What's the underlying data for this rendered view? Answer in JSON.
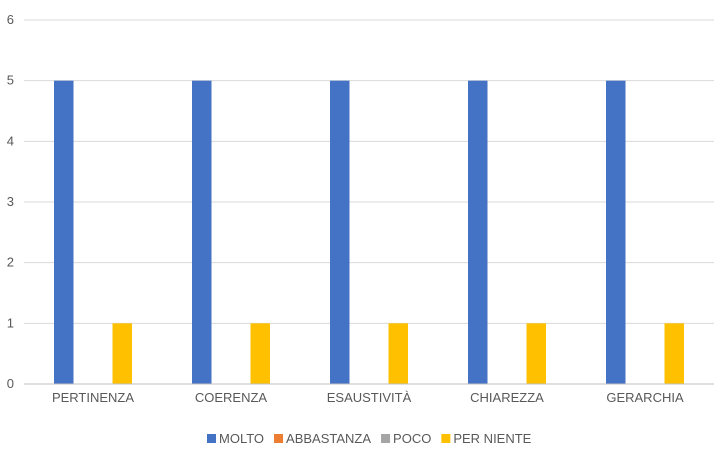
{
  "chart_data": {
    "type": "bar",
    "categories": [
      "PERTINENZA",
      "COERENZA",
      "ESAUSTIVITÀ",
      "CHIAREZZA",
      "GERARCHIA"
    ],
    "series": [
      {
        "name": "MOLTO",
        "color": "#4472C4",
        "values": [
          5,
          5,
          5,
          5,
          5
        ]
      },
      {
        "name": "ABBASTANZA",
        "color": "#ED7D31",
        "values": [
          0,
          0,
          0,
          0,
          0
        ]
      },
      {
        "name": "POCO",
        "color": "#A5A5A5",
        "values": [
          0,
          0,
          0,
          0,
          0
        ]
      },
      {
        "name": "PER NIENTE",
        "color": "#FFC000",
        "values": [
          1,
          1,
          1,
          1,
          1
        ]
      }
    ],
    "ylim": [
      0,
      6
    ],
    "yticks": [
      "0",
      "1",
      "2",
      "3",
      "4",
      "5",
      "6"
    ],
    "grid": true,
    "legend": "bottom-center"
  }
}
